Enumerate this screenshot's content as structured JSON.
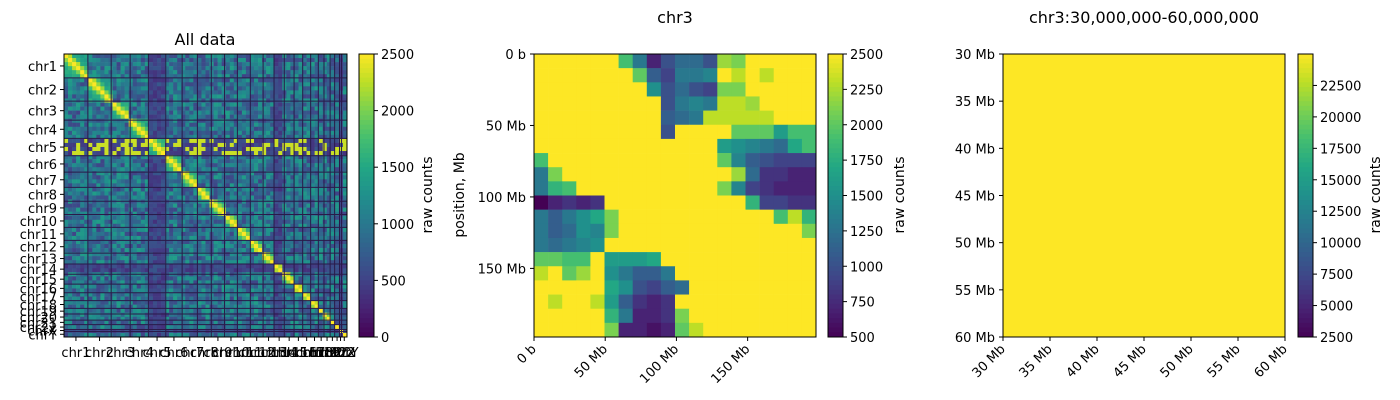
{
  "chart_data": [
    {
      "type": "heatmap",
      "title": "All data",
      "ylabel": "",
      "xlabel": "",
      "chromosomes": [
        "chr1",
        "chr2",
        "chr3",
        "chr4",
        "chr5",
        "chr6",
        "chr7",
        "chr8",
        "chr9",
        "chr10",
        "chr11",
        "chr12",
        "chr13",
        "chr14",
        "chr15",
        "chr16",
        "chr17",
        "chr18",
        "chr19",
        "chr20",
        "chr21",
        "chr22",
        "chrX",
        "chrY"
      ],
      "chromosome_sizes_mb": [
        249,
        243,
        198,
        190,
        181,
        171,
        159,
        145,
        138,
        134,
        135,
        133,
        114,
        107,
        102,
        90,
        83,
        80,
        59,
        64,
        47,
        51,
        21,
        57
      ],
      "colorbar": {
        "label": "raw counts",
        "ticks": [
          0,
          500,
          1000,
          1500,
          2000,
          2500
        ],
        "range": [
          0,
          2500
        ]
      },
      "colormap": "viridis"
    },
    {
      "type": "heatmap",
      "title": "chr3",
      "ylabel": "position, Mb",
      "xlabel": "",
      "axis_range_mb": [
        0,
        198
      ],
      "xticks": [
        "0 b",
        "50 Mb",
        "100 Mb",
        "150 Mb"
      ],
      "yticks": [
        "0 b",
        "50 Mb",
        "100 Mb",
        "150 Mb"
      ],
      "tick_values_mb": [
        0,
        50,
        100,
        150
      ],
      "bin_size_mb": 10,
      "grid_size": 20,
      "colorbar": {
        "label": "raw counts",
        "ticks": [
          500,
          750,
          1000,
          1250,
          1500,
          1750,
          2000,
          2250,
          2500
        ],
        "range": [
          500,
          2500
        ]
      },
      "colormap": "viridis",
      "matrix": [
        [
          2500,
          2500,
          2500,
          2500,
          2500,
          2500,
          1900,
          1300,
          700,
          1000,
          1200,
          1200,
          1000,
          2200,
          2100,
          2500,
          2500,
          2500,
          2500,
          2500
        ],
        [
          2500,
          2500,
          2500,
          2500,
          2500,
          2500,
          2500,
          2000,
          1100,
          900,
          1300,
          1300,
          1400,
          2500,
          2300,
          2500,
          2300,
          2500,
          2500,
          2500
        ],
        [
          2500,
          2500,
          2500,
          2500,
          2500,
          2500,
          2500,
          2500,
          1500,
          1000,
          1200,
          1000,
          900,
          2100,
          2100,
          2500,
          2500,
          2500,
          2500,
          2500
        ],
        [
          2500,
          2500,
          2500,
          2500,
          2500,
          2500,
          2500,
          2500,
          2500,
          1000,
          1300,
          1400,
          1300,
          2300,
          2300,
          2200,
          2500,
          2500,
          2500,
          2500
        ],
        [
          2500,
          2500,
          2500,
          2500,
          2500,
          2500,
          2500,
          2500,
          2500,
          1100,
          1200,
          1300,
          2300,
          2300,
          2300,
          2300,
          2300,
          2500,
          2500,
          2500
        ],
        [
          2500,
          2500,
          2500,
          2500,
          2500,
          2500,
          2500,
          2500,
          2500,
          1000,
          2500,
          2500,
          2500,
          2500,
          2000,
          2000,
          2000,
          1600,
          1900,
          1900
        ],
        [
          2500,
          2500,
          2500,
          2500,
          2500,
          2500,
          2500,
          2500,
          2500,
          2500,
          2500,
          2500,
          2500,
          1600,
          1500,
          1400,
          1300,
          1200,
          1700,
          1900
        ],
        [
          1900,
          2500,
          2500,
          2500,
          2500,
          2500,
          2500,
          2500,
          2500,
          2500,
          2500,
          2500,
          2500,
          2000,
          1400,
          1100,
          1000,
          900,
          900,
          900
        ],
        [
          1300,
          2100,
          2500,
          2500,
          2500,
          2500,
          2500,
          2500,
          2500,
          2500,
          2500,
          2500,
          2500,
          2500,
          2200,
          1200,
          800,
          800,
          700,
          700
        ],
        [
          1300,
          1800,
          1900,
          2500,
          2500,
          2500,
          2500,
          2500,
          2500,
          2500,
          2500,
          2500,
          2500,
          2100,
          1400,
          900,
          800,
          700,
          700,
          700
        ],
        [
          500,
          700,
          800,
          700,
          800,
          2500,
          2500,
          2500,
          2500,
          2500,
          2500,
          2500,
          2500,
          2500,
          2500,
          1800,
          900,
          900,
          800,
          800
        ],
        [
          1300,
          1100,
          1300,
          1500,
          1700,
          2100,
          2500,
          2500,
          2500,
          2500,
          2500,
          2500,
          2500,
          2500,
          2500,
          2500,
          2500,
          1900,
          2300,
          1800
        ],
        [
          1300,
          1100,
          1200,
          1500,
          1400,
          2100,
          2500,
          2500,
          2500,
          2500,
          2500,
          2500,
          2500,
          2500,
          2500,
          2500,
          2500,
          2500,
          2500,
          2100
        ],
        [
          1300,
          1200,
          1300,
          1400,
          1500,
          2500,
          2500,
          2500,
          2500,
          2500,
          2500,
          2500,
          2500,
          2500,
          2500,
          2500,
          2500,
          2500,
          2500,
          2500
        ],
        [
          2000,
          2000,
          1900,
          1900,
          2500,
          1600,
          1600,
          1600,
          1700,
          2500,
          2500,
          2500,
          2500,
          2500,
          2500,
          2500,
          2500,
          2500,
          2500,
          2500
        ],
        [
          2300,
          2500,
          2000,
          2200,
          2500,
          1500,
          1300,
          1100,
          1100,
          1300,
          2500,
          2500,
          2500,
          2500,
          2500,
          2500,
          2500,
          2500,
          2500,
          2500
        ],
        [
          2500,
          2500,
          2500,
          2500,
          2500,
          1700,
          1500,
          1000,
          900,
          1100,
          1200,
          2500,
          2500,
          2500,
          2500,
          2500,
          2500,
          2500,
          2500,
          2500
        ],
        [
          2500,
          2300,
          2500,
          2500,
          2300,
          1600,
          1100,
          800,
          700,
          800,
          2500,
          2500,
          2500,
          2500,
          2500,
          2500,
          2500,
          2500,
          2500,
          2500
        ],
        [
          2500,
          2500,
          2500,
          2500,
          2500,
          1800,
          1300,
          700,
          700,
          800,
          2100,
          2500,
          2500,
          2500,
          2500,
          2500,
          2500,
          2500,
          2500,
          2500
        ],
        [
          2500,
          2500,
          2500,
          2500,
          2500,
          2100,
          700,
          700,
          600,
          700,
          2000,
          2300,
          2500,
          2500,
          2500,
          2500,
          2500,
          2500,
          2500,
          2500
        ]
      ]
    },
    {
      "type": "heatmap",
      "title": "chr3:30,000,000-60,000,000",
      "ylabel": "",
      "xlabel": "",
      "axis_range_mb": [
        30,
        60
      ],
      "xticks": [
        "30 Mb",
        "35 Mb",
        "40 Mb",
        "45 Mb",
        "50 Mb",
        "55 Mb",
        "60 Mb"
      ],
      "yticks": [
        "30 Mb",
        "35 Mb",
        "40 Mb",
        "45 Mb",
        "50 Mb",
        "55 Mb",
        "60 Mb"
      ],
      "tick_values_mb": [
        30,
        35,
        40,
        45,
        50,
        55,
        60
      ],
      "fill_value": 25000,
      "colorbar": {
        "label": "raw counts",
        "ticks": [
          2500,
          5000,
          7500,
          10000,
          12500,
          15000,
          17500,
          20000,
          22500
        ],
        "range": [
          2500,
          25000
        ]
      },
      "colormap": "viridis"
    }
  ]
}
